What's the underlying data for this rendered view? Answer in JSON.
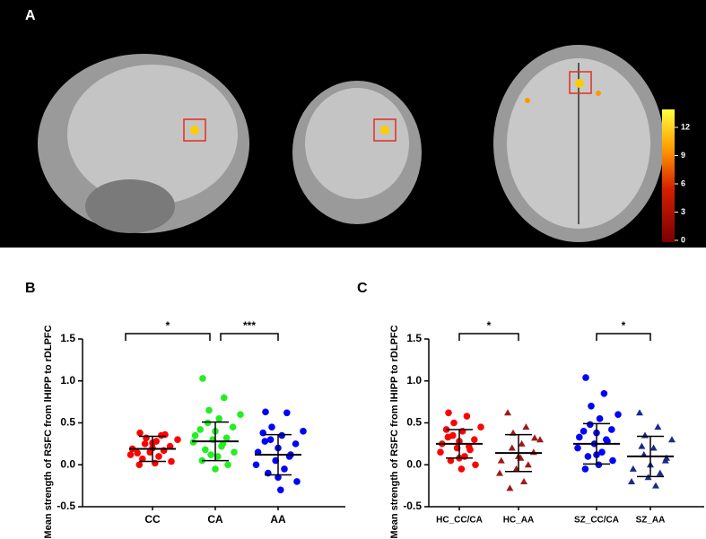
{
  "panel_a": {
    "label": "A",
    "colorbar": {
      "lim": [
        0,
        12
      ],
      "ticks": [
        0,
        3,
        6,
        9,
        12
      ]
    }
  },
  "chart_data": [
    {
      "type": "dot",
      "panel_label": "B",
      "ylabel": "Mean strength of RSFC from lHIPP to rDLPFC",
      "ylim": [
        -0.5,
        1.5
      ],
      "yticks": [
        -0.5,
        {
          "value": 0,
          "label": "0.0"
        },
        0.5,
        {
          "value": 1,
          "label": "1.0"
        },
        1.5
      ],
      "categories": [
        "CC",
        "CA",
        "AA"
      ],
      "colors": [
        "#ff0000",
        "#22ee22",
        "#0000ff"
      ],
      "markers": [
        "circle",
        "circle",
        "circle"
      ],
      "values": [
        [
          0.38,
          0.35,
          0.32,
          0.3,
          0.28,
          0.25,
          0.22,
          0.2,
          0.19,
          0.17,
          0.15,
          0.12,
          0.1,
          0.07,
          0.04,
          0.02,
          0.0,
          0.36,
          0.26,
          0.14
        ],
        [
          1.03,
          0.8,
          0.65,
          0.6,
          0.55,
          0.5,
          0.45,
          0.4,
          0.35,
          0.32,
          0.3,
          0.27,
          0.22,
          0.18,
          0.15,
          0.1,
          0.05,
          0.0,
          -0.05,
          0.42,
          0.25,
          0.12
        ],
        [
          0.63,
          0.62,
          0.45,
          0.4,
          0.35,
          0.3,
          0.25,
          0.2,
          0.15,
          0.1,
          0.05,
          0.0,
          -0.05,
          -0.1,
          -0.2,
          -0.3,
          0.28,
          0.12,
          -0.15,
          0.38
        ]
      ],
      "means": [
        0.19,
        0.28,
        0.12
      ],
      "sds": [
        0.15,
        0.23,
        0.24
      ],
      "brackets": [
        {
          "between": [
            0,
            1
          ],
          "label": "*"
        },
        {
          "between": [
            1,
            2
          ],
          "label": "***"
        }
      ]
    },
    {
      "type": "dot",
      "panel_label": "C",
      "ylabel": "Mean strength of RSFC from lHIPP to rDLPFC",
      "ylim": [
        -0.5,
        1.5
      ],
      "yticks": [
        -0.5,
        {
          "value": 0,
          "label": "0.0"
        },
        0.5,
        {
          "value": 1,
          "label": "1.0"
        },
        1.5
      ],
      "categories": [
        "HC_CC/CA",
        "HC_AA",
        "SZ_CC/CA",
        "SZ_AA"
      ],
      "colors": [
        "#ff0000",
        "#a01818",
        "#0000ff",
        "#1a2a8a"
      ],
      "markers": [
        "circle",
        "triangle",
        "circle",
        "triangle"
      ],
      "values": [
        [
          0.62,
          0.58,
          0.5,
          0.45,
          0.4,
          0.35,
          0.3,
          0.28,
          0.25,
          0.22,
          0.2,
          0.15,
          0.1,
          0.05,
          0.0,
          -0.05,
          0.33,
          0.18,
          0.08,
          0.42
        ],
        [
          0.62,
          0.45,
          0.38,
          0.3,
          0.25,
          0.2,
          0.15,
          0.1,
          0.05,
          0.0,
          -0.05,
          -0.1,
          -0.2,
          -0.28,
          0.32,
          0.08
        ],
        [
          1.04,
          0.85,
          0.7,
          0.6,
          0.55,
          0.48,
          0.42,
          0.38,
          0.33,
          0.3,
          0.25,
          0.2,
          0.15,
          0.1,
          0.05,
          0.0,
          -0.05,
          0.28,
          0.12,
          0.4
        ],
        [
          0.62,
          0.45,
          0.35,
          0.3,
          0.2,
          0.12,
          0.05,
          0.0,
          -0.05,
          -0.1,
          -0.15,
          -0.2,
          -0.25,
          0.22,
          0.08
        ]
      ],
      "means": [
        0.25,
        0.14,
        0.25,
        0.1
      ],
      "sds": [
        0.17,
        0.22,
        0.24,
        0.24
      ],
      "brackets": [
        {
          "between": [
            0,
            1
          ],
          "label": "*"
        },
        {
          "between": [
            2,
            3
          ],
          "label": "*"
        }
      ]
    }
  ]
}
